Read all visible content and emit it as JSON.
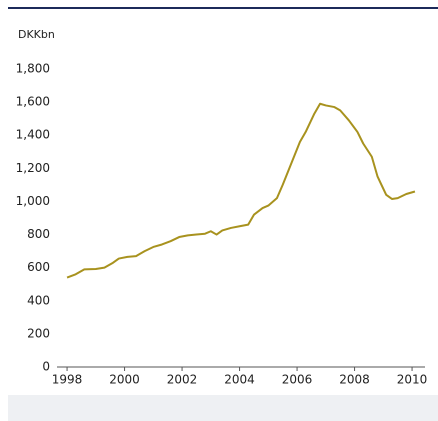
{
  "chart_data": {
    "type": "line",
    "ylabel": "DKKbn",
    "x": [
      1998.0,
      1998.3,
      1998.6,
      1999.0,
      1999.3,
      1999.6,
      1999.8,
      2000.1,
      2000.4,
      2000.7,
      2001.0,
      2001.3,
      2001.6,
      2001.9,
      2002.2,
      2002.5,
      2002.8,
      2003.0,
      2003.2,
      2003.4,
      2003.7,
      2004.0,
      2004.3,
      2004.5,
      2004.8,
      2005.0,
      2005.3,
      2005.5,
      2005.8,
      2006.1,
      2006.3,
      2006.6,
      2006.8,
      2007.0,
      2007.3,
      2007.5,
      2007.8,
      2008.1,
      2008.3,
      2008.6,
      2008.8,
      2009.1,
      2009.3,
      2009.5,
      2009.8,
      2010.1
    ],
    "series": [
      {
        "color": "#a8921e",
        "values": [
          540,
          560,
          590,
          592,
          600,
          630,
          655,
          665,
          670,
          700,
          725,
          740,
          760,
          785,
          795,
          800,
          805,
          820,
          800,
          825,
          840,
          850,
          860,
          920,
          960,
          975,
          1020,
          1100,
          1230,
          1360,
          1420,
          1530,
          1590,
          1580,
          1570,
          1550,
          1490,
          1420,
          1350,
          1270,
          1150,
          1040,
          1015,
          1020,
          1045,
          1060
        ]
      }
    ],
    "xlim": [
      1997.65,
      2010.45
    ],
    "xticks": [
      1998,
      2000,
      2002,
      2004,
      2006,
      2008,
      2010
    ],
    "ylim": [
      0,
      1800
    ],
    "yticks": [
      0,
      200,
      400,
      600,
      800,
      {
        "value": 1000,
        "label": "1,000"
      },
      {
        "value": 1200,
        "label": "1,200"
      },
      {
        "value": 1400,
        "label": "1,400"
      },
      {
        "value": 1600,
        "label": "1,600"
      },
      {
        "value": 1800,
        "label": "1,800"
      }
    ],
    "grid": false
  }
}
